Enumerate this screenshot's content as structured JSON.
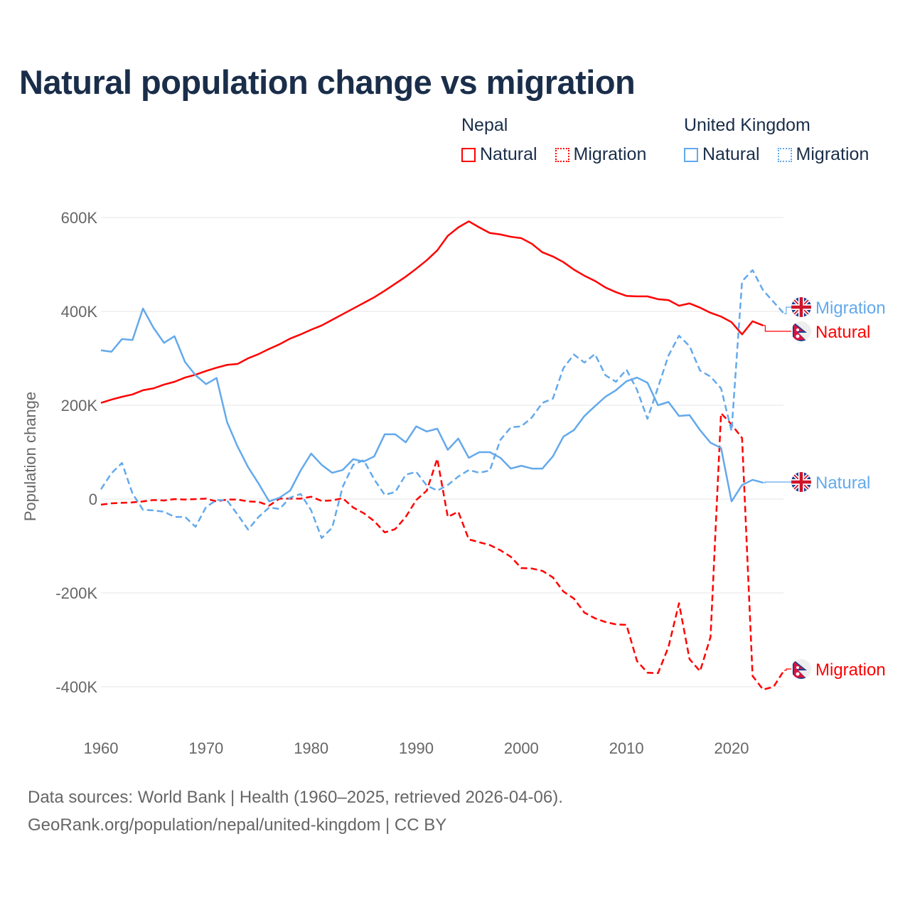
{
  "title": "Natural population change vs migration",
  "legend": {
    "groups": [
      {
        "name": "Nepal",
        "items": [
          {
            "label": "Natural",
            "style": "solid",
            "color": "#ff0000"
          },
          {
            "label": "Migration",
            "style": "dotted",
            "color": "#ff0000"
          }
        ]
      },
      {
        "name": "United Kingdom",
        "items": [
          {
            "label": "Natural",
            "style": "solid",
            "color": "#63a9ec"
          },
          {
            "label": "Migration",
            "style": "dotted",
            "color": "#63a9ec"
          }
        ]
      }
    ]
  },
  "footer": {
    "line1": "Data sources: World Bank | Health (1960–2025, retrieved 2026-04-06).",
    "line2": "GeoRank.org/population/nepal/united-kingdom | CC BY"
  },
  "chart_data": {
    "type": "line",
    "title": "Natural population change vs migration",
    "xlabel": "",
    "ylabel": "Population change",
    "xlim": [
      1960,
      2025
    ],
    "ylim": [
      -500000,
      600000
    ],
    "x_ticks": [
      1960,
      1970,
      1980,
      1990,
      2000,
      2010,
      2020
    ],
    "y_ticks": [
      600000,
      400000,
      200000,
      0,
      -200000,
      -400000
    ],
    "y_tick_labels": [
      "600K",
      "400K",
      "200K",
      "0",
      "-200K",
      "-400K"
    ],
    "grid": true,
    "legend_position": "top-right",
    "series": [
      {
        "name": "Nepal Natural",
        "end_label": "Natural",
        "flag": "nepal",
        "color": "#ff0000",
        "dash": false,
        "start": 1960,
        "values": [
          205,
          212,
          218,
          223,
          232,
          236,
          244,
          250,
          259,
          265,
          273,
          280,
          286,
          288,
          300,
          309,
          320,
          330,
          342,
          351,
          361,
          370,
          382,
          394,
          406,
          418,
          430,
          444,
          459,
          474,
          491,
          509,
          530,
          561,
          579,
          592,
          579,
          567,
          564,
          559,
          556,
          544,
          526,
          517,
          505,
          489,
          476,
          465,
          451,
          441,
          433,
          432,
          432,
          426,
          424,
          412,
          417,
          408,
          397,
          389,
          377,
          351,
          379,
          370
        ]
      },
      {
        "name": "Nepal Migration",
        "end_label": "Migration",
        "flag": "nepal",
        "color": "#ff0000",
        "dash": true,
        "start": 1960,
        "values": [
          -12,
          -9,
          -8,
          -7,
          -5,
          -2,
          -3,
          0,
          -1,
          0,
          1,
          -5,
          -1,
          -1,
          -5,
          -6,
          -14,
          1,
          1,
          1,
          5,
          -4,
          -3,
          2,
          -18,
          -30,
          -47,
          -71,
          -64,
          -38,
          -2,
          18,
          86,
          -38,
          -27,
          -86,
          -92,
          -98,
          -109,
          -123,
          -147,
          -148,
          -153,
          -167,
          -197,
          -212,
          -242,
          -254,
          -262,
          -267,
          -268,
          -345,
          -370,
          -371,
          -315,
          -222,
          -341,
          -367,
          -294,
          183,
          159,
          130,
          -377,
          -406,
          -400,
          -365
        ]
      },
      {
        "name": "United Kingdom Natural",
        "end_label": "Natural",
        "flag": "uk",
        "color": "#63a9ec",
        "dash": false,
        "start": 1960,
        "values": [
          317,
          314,
          341,
          339,
          406,
          365,
          333,
          347,
          292,
          264,
          245,
          258,
          164,
          112,
          68,
          33,
          -5,
          3,
          18,
          61,
          97,
          73,
          56,
          62,
          85,
          80,
          91,
          138,
          138,
          121,
          155,
          144,
          150,
          105,
          129,
          88,
          100,
          100,
          88,
          65,
          71,
          65,
          65,
          91,
          133,
          147,
          177,
          198,
          218,
          232,
          251,
          259,
          248,
          200,
          207,
          177,
          179,
          147,
          120,
          109,
          -5,
          30,
          41,
          35
        ]
      },
      {
        "name": "United Kingdom Migration",
        "end_label": "Migration",
        "flag": "uk",
        "color": "#63a9ec",
        "dash": true,
        "start": 1960,
        "values": [
          21,
          55,
          77,
          12,
          -23,
          -24,
          -27,
          -38,
          -38,
          -59,
          -17,
          -2,
          -3,
          -33,
          -65,
          -38,
          -18,
          -21,
          3,
          11,
          -24,
          -83,
          -61,
          26,
          73,
          83,
          42,
          9,
          15,
          52,
          58,
          29,
          18,
          30,
          48,
          62,
          56,
          61,
          126,
          153,
          155,
          174,
          205,
          214,
          279,
          308,
          291,
          309,
          264,
          250,
          276,
          233,
          171,
          238,
          306,
          348,
          326,
          274,
          261,
          236,
          145,
          464,
          488,
          445,
          420,
          395
        ]
      }
    ],
    "value_unit_multiplier": 1000
  }
}
